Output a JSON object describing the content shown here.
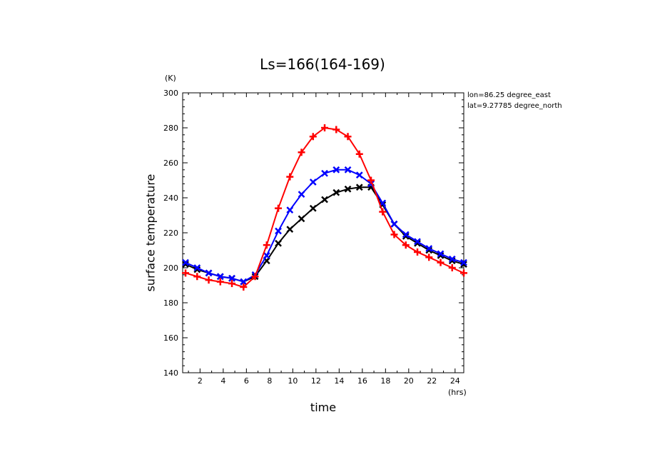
{
  "chart_data": {
    "type": "line",
    "title": "Ls=166(164-169)",
    "xlabel": "time",
    "ylabel": "surface temperature",
    "x_unit": "(hrs)",
    "y_unit": "(K)",
    "xlim": [
      0.5,
      24.75
    ],
    "ylim": [
      140,
      300
    ],
    "x_ticks": [
      2,
      4,
      6,
      8,
      10,
      12,
      14,
      16,
      18,
      20,
      22,
      24
    ],
    "y_ticks": [
      140,
      160,
      180,
      200,
      220,
      240,
      260,
      280,
      300
    ],
    "annotations": [
      "lon=86.25 degree_east",
      "lat=9.27785 degree_north"
    ],
    "x": [
      0.75,
      1.75,
      2.75,
      3.75,
      4.75,
      5.75,
      6.75,
      7.75,
      8.75,
      9.75,
      10.75,
      11.75,
      12.75,
      13.75,
      14.75,
      15.75,
      16.75,
      17.75,
      18.75,
      19.75,
      20.75,
      21.75,
      22.75,
      23.75,
      24.75
    ],
    "series": [
      {
        "color": "#000000",
        "marker": "x",
        "values": [
          202,
          199,
          197,
          195,
          194,
          192,
          195,
          204,
          214,
          222,
          228,
          234,
          239,
          243,
          245,
          246,
          246,
          236,
          225,
          218,
          214,
          210,
          207,
          204,
          202
        ]
      },
      {
        "color": "#0000ff",
        "marker": "x",
        "values": [
          203,
          200,
          197,
          195,
          194,
          192,
          196,
          207,
          221,
          233,
          242,
          249,
          254,
          256,
          256,
          253,
          248,
          237,
          225,
          219,
          215,
          211,
          208,
          205,
          203
        ]
      },
      {
        "color": "#ff0000",
        "marker": "+",
        "values": [
          197,
          195,
          193,
          192,
          191,
          189,
          195,
          213,
          234,
          252,
          266,
          275,
          280,
          279,
          275,
          265,
          250,
          232,
          219,
          213,
          209,
          206,
          203,
          200,
          197
        ]
      }
    ]
  }
}
